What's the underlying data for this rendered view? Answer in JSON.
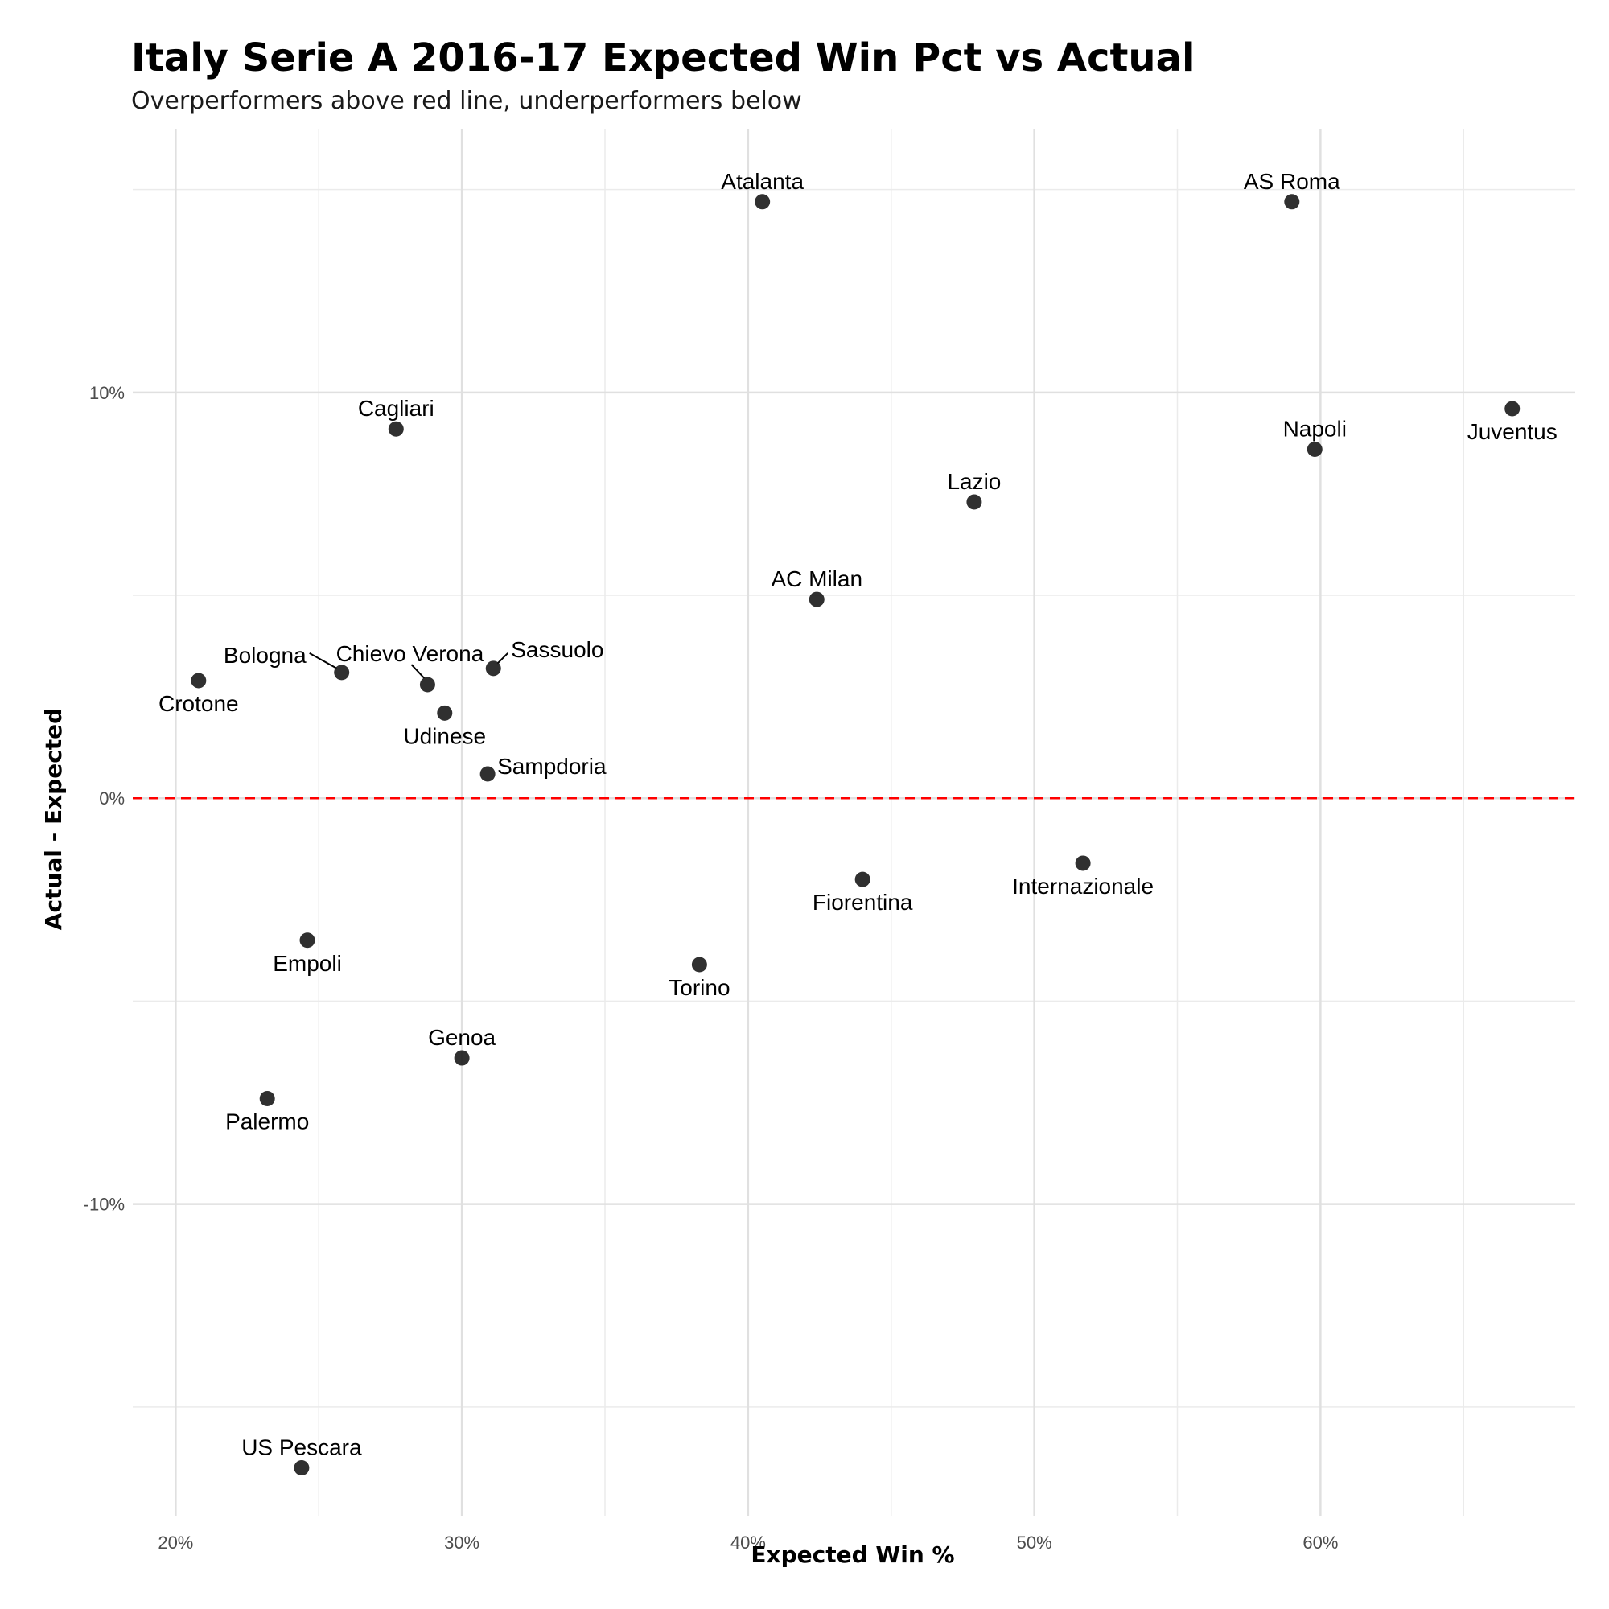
{
  "chart_data": {
    "type": "scatter",
    "title": "Italy Serie A 2016-17 Expected Win Pct vs Actual",
    "subtitle": "Overperformers above red line, underperformers below",
    "xlabel": "Expected Win %",
    "ylabel": "Actual - Expected",
    "xlim": [
      18.5,
      68.9
    ],
    "ylim": [
      -17.7,
      16.5
    ],
    "x_ticks": [
      20,
      30,
      40,
      50,
      60
    ],
    "x_tick_labels": [
      "20%",
      "30%",
      "40%",
      "50%",
      "60%"
    ],
    "y_ticks": [
      -10,
      0,
      10
    ],
    "y_tick_labels": [
      "-10%",
      "0%",
      "10%"
    ],
    "grid": true,
    "reference_line": {
      "y": 0,
      "color": "#ff0000",
      "style": "dashed"
    },
    "point_color": "#1a1a1a",
    "points": [
      {
        "name": "Atalanta",
        "x": 40.5,
        "y": 14.7,
        "pos": "above"
      },
      {
        "name": "AS Roma",
        "x": 59.0,
        "y": 14.7,
        "pos": "above"
      },
      {
        "name": "Juventus",
        "x": 66.7,
        "y": 9.6,
        "pos": "below"
      },
      {
        "name": "Napoli",
        "x": 59.8,
        "y": 8.6,
        "pos": "above"
      },
      {
        "name": "Cagliari",
        "x": 27.7,
        "y": 9.1,
        "pos": "above"
      },
      {
        "name": "Lazio",
        "x": 47.9,
        "y": 7.3,
        "pos": "above"
      },
      {
        "name": "AC Milan",
        "x": 42.4,
        "y": 4.9,
        "pos": "above"
      },
      {
        "name": "Crotone",
        "x": 20.8,
        "y": 2.9,
        "pos": "below"
      },
      {
        "name": "Bologna",
        "x": 25.8,
        "y": 3.1,
        "pos": "leader-left"
      },
      {
        "name": "Chievo Verona",
        "x": 28.8,
        "y": 2.8,
        "pos": "leader-up"
      },
      {
        "name": "Sassuolo",
        "x": 31.1,
        "y": 3.2,
        "pos": "leader-right"
      },
      {
        "name": "Udinese",
        "x": 29.4,
        "y": 2.1,
        "pos": "below"
      },
      {
        "name": "Sampdoria",
        "x": 30.9,
        "y": 0.6,
        "pos": "right"
      },
      {
        "name": "Fiorentina",
        "x": 44.0,
        "y": -2.0,
        "pos": "below"
      },
      {
        "name": "Internazionale",
        "x": 51.7,
        "y": -1.6,
        "pos": "below"
      },
      {
        "name": "Empoli",
        "x": 24.6,
        "y": -3.5,
        "pos": "below"
      },
      {
        "name": "Torino",
        "x": 38.3,
        "y": -4.1,
        "pos": "below"
      },
      {
        "name": "Genoa",
        "x": 30.0,
        "y": -6.4,
        "pos": "above"
      },
      {
        "name": "Palermo",
        "x": 23.2,
        "y": -7.4,
        "pos": "below"
      },
      {
        "name": "US Pescara",
        "x": 24.4,
        "y": -16.5,
        "pos": "above"
      }
    ]
  }
}
